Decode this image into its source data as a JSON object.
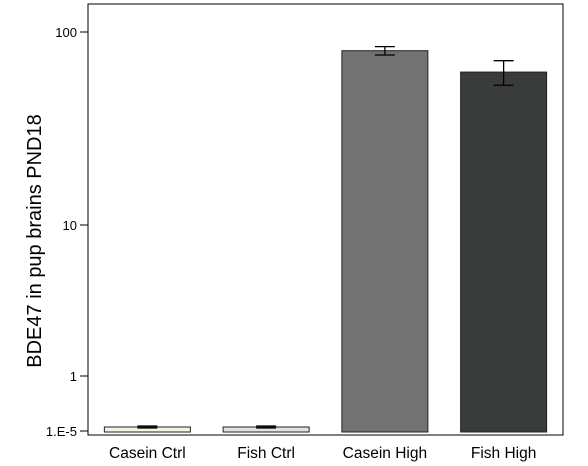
{
  "chart_data": {
    "type": "bar",
    "title": "",
    "xlabel": "",
    "ylabel": "BDE47 in pup brains PND18",
    "y_scale": "broken-log",
    "y_tick_values": [
      1e-05,
      1,
      10,
      100
    ],
    "y_tick_labels": [
      "1.E-5",
      "1",
      "10",
      "100"
    ],
    "ylim": [
      1e-05,
      100
    ],
    "grid": false,
    "legend": "none",
    "categories": [
      "Casein Ctrl",
      "Fish Ctrl",
      "Casein High",
      "Fish High"
    ],
    "values": [
      3e-05,
      4e-05,
      80,
      62
    ],
    "errors": [
      1e-05,
      1e-05,
      4,
      9
    ],
    "colors": [
      "#f6f3e4",
      "#e2e2e2",
      "#727272",
      "#393c3b"
    ]
  }
}
